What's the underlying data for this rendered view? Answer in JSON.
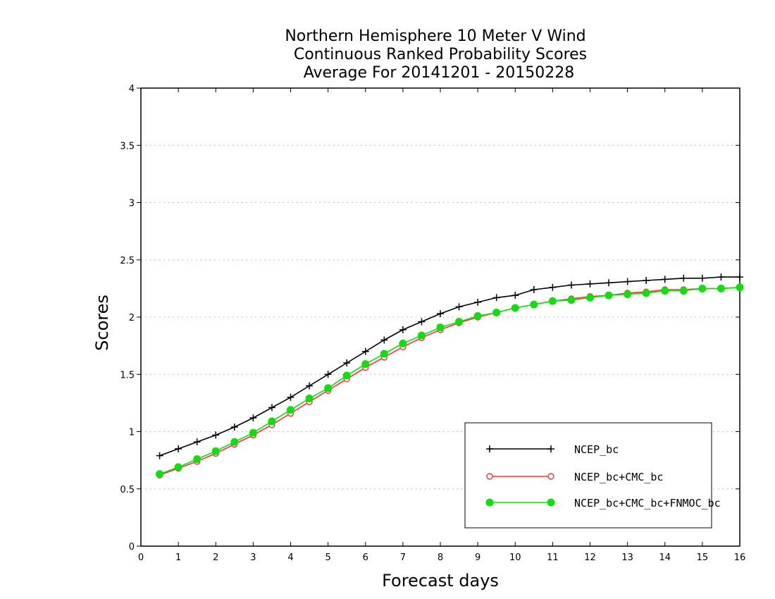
{
  "chart_data": {
    "type": "line",
    "title_lines": [
      "Northern Hemisphere 10 Meter V Wind",
      "Continuous Ranked Probability Scores",
      "Average For 20141201 - 20150228"
    ],
    "xlabel": "Forecast days",
    "ylabel": "Scores",
    "xlim": [
      0,
      16
    ],
    "ylim": [
      0,
      4
    ],
    "xticks": [
      0,
      1,
      2,
      3,
      4,
      5,
      6,
      7,
      8,
      9,
      10,
      11,
      12,
      13,
      14,
      15,
      16
    ],
    "yticks": [
      0,
      0.5,
      1,
      1.5,
      2,
      2.5,
      3,
      3.5,
      4
    ],
    "xtick_labels": [
      "0",
      "1",
      "2",
      "3",
      "4",
      "5",
      "6",
      "7",
      "8",
      "9",
      "10",
      "11",
      "12",
      "13",
      "14",
      "15",
      "16"
    ],
    "ytick_labels": [
      "0",
      "0.5",
      "1",
      "1.5",
      "2",
      "2.5",
      "3",
      "3.5",
      "4"
    ],
    "grid": "horizontal-dotted",
    "legend_position": "bottom-right",
    "x": [
      0.5,
      1,
      1.5,
      2,
      2.5,
      3,
      3.5,
      4,
      4.5,
      5,
      5.5,
      6,
      6.5,
      7,
      7.5,
      8,
      8.5,
      9,
      9.5,
      10,
      10.5,
      11,
      11.5,
      12,
      12.5,
      13,
      13.5,
      14,
      14.5,
      15,
      15.5,
      16
    ],
    "series": [
      {
        "name": "NCEP_bc",
        "color": "#000000",
        "marker": "plus",
        "values": [
          0.79,
          0.85,
          0.91,
          0.97,
          1.04,
          1.12,
          1.21,
          1.3,
          1.4,
          1.5,
          1.6,
          1.7,
          1.8,
          1.89,
          1.96,
          2.03,
          2.09,
          2.13,
          2.17,
          2.19,
          2.24,
          2.26,
          2.28,
          2.29,
          2.3,
          2.31,
          2.32,
          2.33,
          2.34,
          2.34,
          2.35,
          2.35
        ]
      },
      {
        "name": "NCEP_bc+CMC_bc",
        "color": "#ff3030",
        "marker": "open-circle",
        "values": [
          0.62,
          0.68,
          0.74,
          0.81,
          0.89,
          0.97,
          1.06,
          1.16,
          1.26,
          1.36,
          1.46,
          1.56,
          1.65,
          1.74,
          1.82,
          1.89,
          1.95,
          2.0,
          2.04,
          2.08,
          2.11,
          2.14,
          2.16,
          2.18,
          2.19,
          2.21,
          2.22,
          2.24,
          2.24,
          2.25,
          2.25,
          2.26
        ]
      },
      {
        "name": "NCEP_bc+CMC_bc+FNMOC_bc",
        "color": "#11dd11",
        "marker": "filled-circle",
        "values": [
          0.63,
          0.69,
          0.76,
          0.83,
          0.91,
          0.99,
          1.09,
          1.19,
          1.29,
          1.38,
          1.49,
          1.59,
          1.68,
          1.77,
          1.84,
          1.91,
          1.96,
          2.01,
          2.04,
          2.08,
          2.11,
          2.14,
          2.15,
          2.17,
          2.19,
          2.2,
          2.21,
          2.23,
          2.23,
          2.25,
          2.25,
          2.26
        ]
      }
    ]
  }
}
